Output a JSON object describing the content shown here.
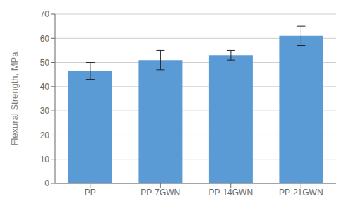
{
  "chart_data": {
    "type": "bar",
    "categories": [
      "PP",
      "PP-7GWN",
      "PP-14GWN",
      "PP-21GWN"
    ],
    "values": [
      46.5,
      51.0,
      53.0,
      61.0
    ],
    "errors": [
      3.5,
      4.0,
      2.0,
      4.0
    ],
    "color": "#5B9BD5",
    "ylabel": "Flexural Strength, MPa",
    "ylim": [
      0,
      70
    ],
    "yticks": [
      0,
      10,
      20,
      30,
      40,
      50,
      60,
      70
    ],
    "grid": true
  }
}
